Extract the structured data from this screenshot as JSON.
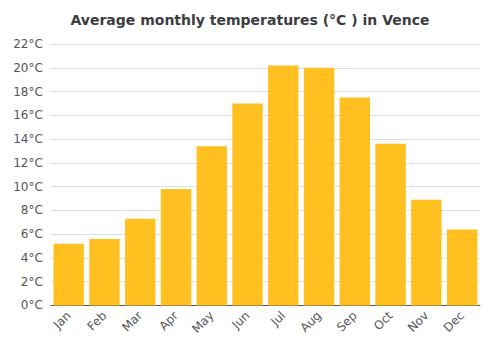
{
  "chart_data": {
    "type": "bar",
    "title": "Average monthly temperatures (°C ) in Vence",
    "categories": [
      "Jan",
      "Feb",
      "Mar",
      "Apr",
      "May",
      "Jun",
      "Jul",
      "Aug",
      "Sep",
      "Oct",
      "Nov",
      "Dec"
    ],
    "values": [
      5.2,
      5.6,
      7.3,
      9.8,
      13.4,
      17.0,
      20.2,
      20.0,
      17.5,
      13.6,
      8.9,
      6.4
    ],
    "color": "#FFC020",
    "ylim": [
      0,
      22
    ],
    "yticks": [
      {
        "value": 0,
        "label": "0°C"
      },
      {
        "value": 2,
        "label": "2°C"
      },
      {
        "value": 4,
        "label": "4°C"
      },
      {
        "value": 6,
        "label": "6°C"
      },
      {
        "value": 8,
        "label": "8°C"
      },
      {
        "value": 10,
        "label": "10°C"
      },
      {
        "value": 12,
        "label": "12°C"
      },
      {
        "value": 14,
        "label": "14°C"
      },
      {
        "value": 16,
        "label": "16°C"
      },
      {
        "value": 18,
        "label": "18°C"
      },
      {
        "value": 20,
        "label": "20°C"
      },
      {
        "value": 22,
        "label": "22°C"
      }
    ],
    "grid": true
  }
}
